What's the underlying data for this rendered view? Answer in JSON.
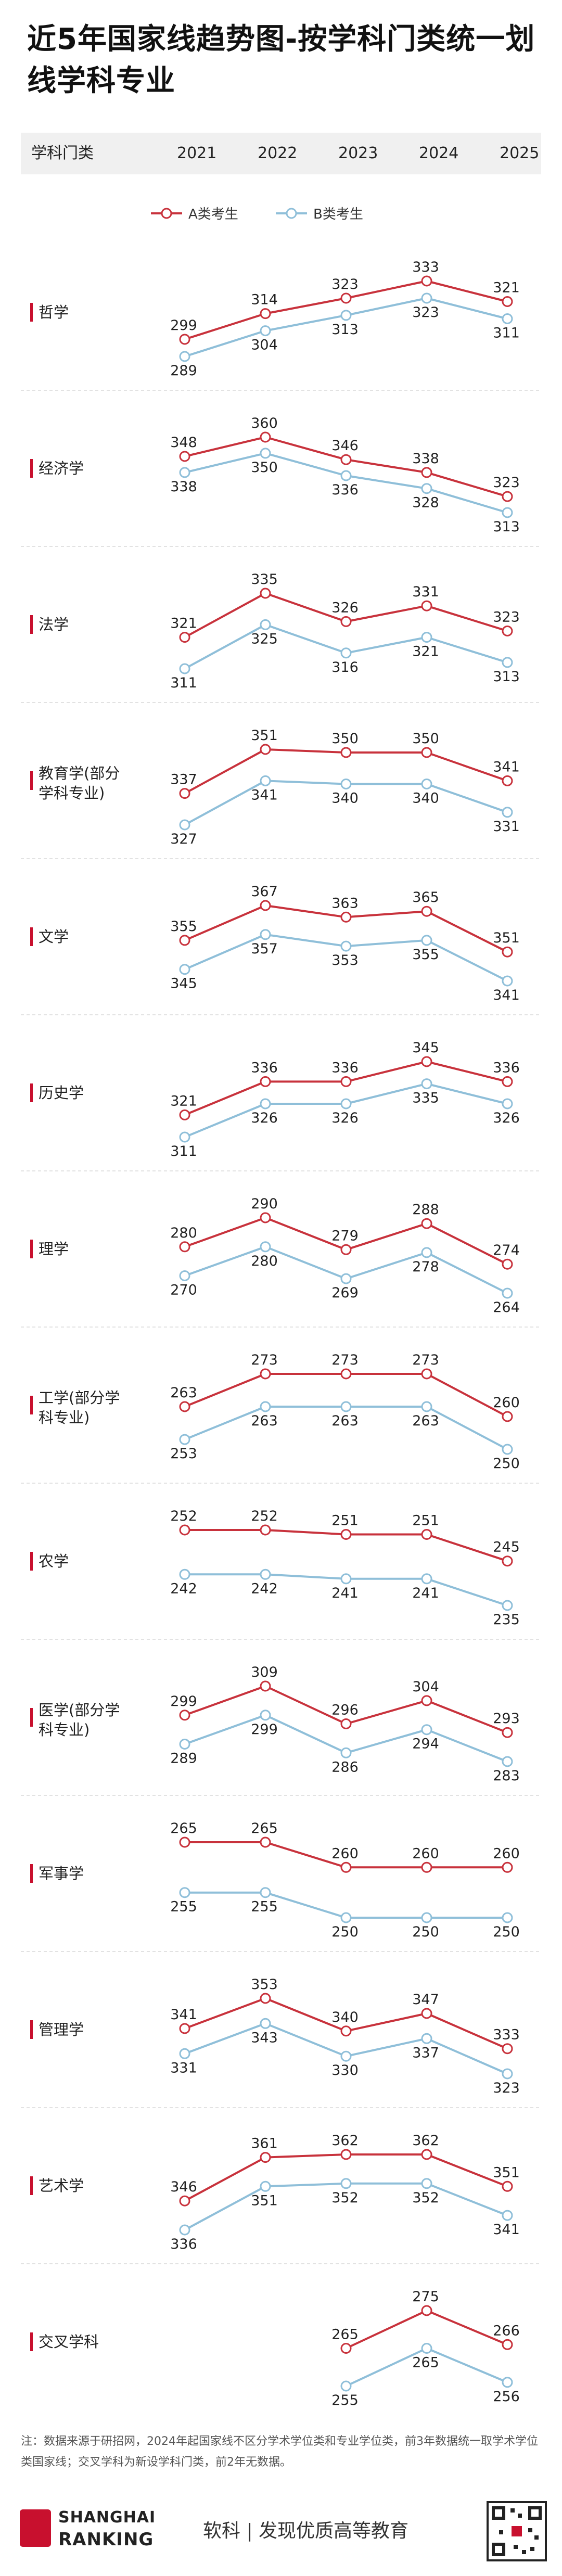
{
  "title": "近5年国家线趋势图-按学科门类统一划线学科专业",
  "header": {
    "category_label": "学科门类",
    "years": [
      "2021",
      "2022",
      "2023",
      "2024",
      "2025"
    ]
  },
  "legend": {
    "a_label": "A类考生",
    "b_label": "B类考生"
  },
  "colors": {
    "a": "#c8323c",
    "b": "#8fbfd9",
    "accent": "#c8102e"
  },
  "chart_data": {
    "type": "line",
    "x": [
      "2021",
      "2022",
      "2023",
      "2024",
      "2025"
    ],
    "series_names": [
      "A类考生",
      "B类考生"
    ],
    "panels": [
      {
        "label": "哲学",
        "a": [
          299,
          314,
          323,
          333,
          321
        ],
        "b": [
          289,
          304,
          313,
          323,
          311
        ]
      },
      {
        "label": "经济学",
        "a": [
          348,
          360,
          346,
          338,
          323
        ],
        "b": [
          338,
          350,
          336,
          328,
          313
        ]
      },
      {
        "label": "法学",
        "a": [
          321,
          335,
          326,
          331,
          323
        ],
        "b": [
          311,
          325,
          316,
          321,
          313
        ]
      },
      {
        "label": "教育学(部分学科专业)",
        "a": [
          337,
          351,
          350,
          350,
          341
        ],
        "b": [
          327,
          341,
          340,
          340,
          331
        ]
      },
      {
        "label": "文学",
        "a": [
          355,
          367,
          363,
          365,
          351
        ],
        "b": [
          345,
          357,
          353,
          355,
          341
        ]
      },
      {
        "label": "历史学",
        "a": [
          321,
          336,
          336,
          345,
          336
        ],
        "b": [
          311,
          326,
          326,
          335,
          326
        ]
      },
      {
        "label": "理学",
        "a": [
          280,
          290,
          279,
          288,
          274
        ],
        "b": [
          270,
          280,
          269,
          278,
          264
        ]
      },
      {
        "label": "工学(部分学科专业)",
        "a": [
          263,
          273,
          273,
          273,
          260
        ],
        "b": [
          253,
          263,
          263,
          263,
          250
        ]
      },
      {
        "label": "农学",
        "a": [
          252,
          252,
          251,
          251,
          245
        ],
        "b": [
          242,
          242,
          241,
          241,
          235
        ]
      },
      {
        "label": "医学(部分学科专业)",
        "a": [
          299,
          309,
          296,
          304,
          293
        ],
        "b": [
          289,
          299,
          286,
          294,
          283
        ]
      },
      {
        "label": "军事学",
        "a": [
          265,
          265,
          260,
          260,
          260
        ],
        "b": [
          255,
          255,
          250,
          250,
          250
        ]
      },
      {
        "label": "管理学",
        "a": [
          341,
          353,
          340,
          347,
          333
        ],
        "b": [
          331,
          343,
          330,
          337,
          323
        ]
      },
      {
        "label": "艺术学",
        "a": [
          346,
          361,
          362,
          362,
          351
        ],
        "b": [
          336,
          351,
          352,
          352,
          341
        ]
      },
      {
        "label": "交叉学科",
        "a": [
          null,
          null,
          265,
          275,
          266
        ],
        "b": [
          null,
          null,
          255,
          265,
          256
        ]
      }
    ]
  },
  "footnote": "注：数据来源于研招网，2024年起国家线不区分学术学位类和专业学位类，前3年数据统一取学术学位类国家线；交叉学科为新设学科门类，前2年无数据。",
  "footer": {
    "logo_line1": "SHANGHAI",
    "logo_line2": "RANKING",
    "slogan": "软科 | 发现优质高等教育"
  }
}
